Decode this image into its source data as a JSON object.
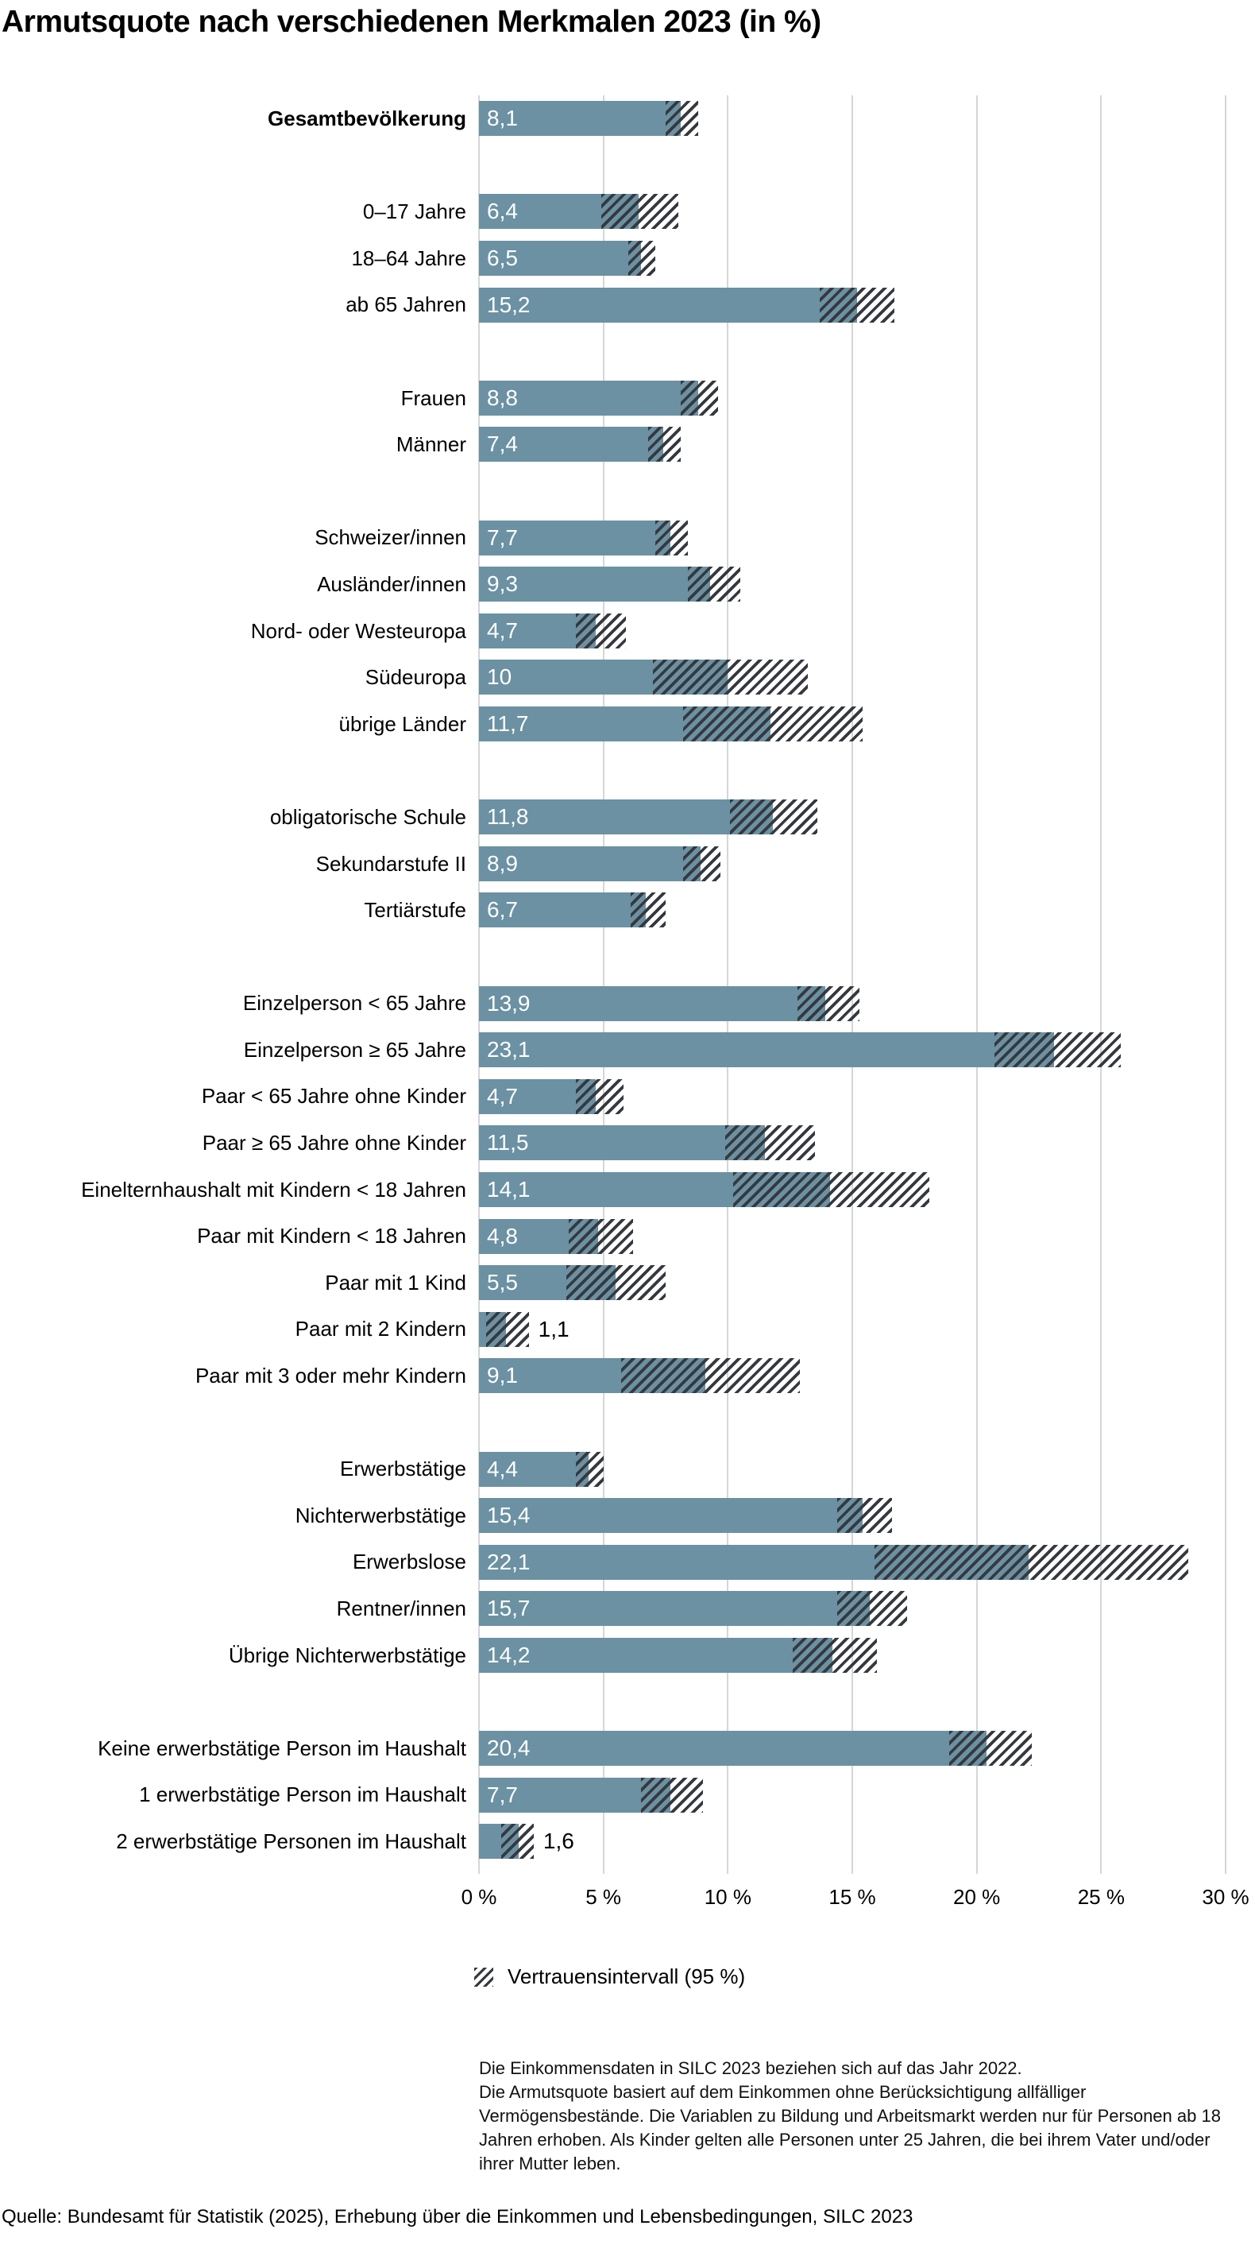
{
  "title": "Armutsquote nach verschiedenen Merkmalen 2023 (in %)",
  "legend": {
    "swatch": "hatch-pattern",
    "label": "Vertrauensintervall (95 %)"
  },
  "notes": {
    "line1": "Die Einkommensdaten in SILC 2023 beziehen sich auf das Jahr 2022.",
    "line2": "Die Armutsquote basiert auf dem Einkommen ohne Berücksichtigung allfälliger Vermögensbestände. Die Variablen zu Bildung und Arbeitsmarkt werden nur für Personen ab 18 Jahren erhoben. Als Kinder gelten alle Personen unter 25 Jahren, die bei ihrem Vater und/oder ihrer Mutter leben."
  },
  "source": "Quelle: Bundesamt für Statistik (2025), Erhebung über die Einkommen und Lebensbedingungen, SILC 2023",
  "colors": {
    "bar": "#6b91a3",
    "hatch": "#35393e",
    "gridline": "#d6d6d6",
    "value_label_inside": "#ffffff",
    "value_label_outside": "#000000"
  },
  "chart_data": {
    "type": "bar",
    "orientation": "horizontal",
    "unit": "%",
    "xlim": [
      0,
      30
    ],
    "x_ticks": [
      "0 %",
      "5 %",
      "10 %",
      "15 %",
      "20 %",
      "25 %",
      "30 %"
    ],
    "x_tick_values": [
      0,
      5,
      10,
      15,
      20,
      25,
      30
    ],
    "grid": true,
    "ci_legend": "Vertrauensintervall (95 %)",
    "groups": [
      {
        "rows": [
          {
            "label": "Gesamtbevölkerung",
            "bold": true,
            "value": 8.1,
            "display": "8,1",
            "ci": [
              7.5,
              8.8
            ]
          }
        ]
      },
      {
        "rows": [
          {
            "label": "0–17 Jahre",
            "value": 6.4,
            "display": "6,4",
            "ci": [
              4.9,
              8.0
            ]
          },
          {
            "label": "18–64 Jahre",
            "value": 6.5,
            "display": "6,5",
            "ci": [
              6.0,
              7.1
            ]
          },
          {
            "label": "ab 65 Jahren",
            "value": 15.2,
            "display": "15,2",
            "ci": [
              13.7,
              16.7
            ]
          }
        ]
      },
      {
        "rows": [
          {
            "label": "Frauen",
            "value": 8.8,
            "display": "8,8",
            "ci": [
              8.1,
              9.6
            ]
          },
          {
            "label": "Männer",
            "value": 7.4,
            "display": "7,4",
            "ci": [
              6.8,
              8.1
            ]
          }
        ]
      },
      {
        "rows": [
          {
            "label": "Schweizer/innen",
            "value": 7.7,
            "display": "7,7",
            "ci": [
              7.1,
              8.4
            ]
          },
          {
            "label": "Ausländer/innen",
            "value": 9.3,
            "display": "9,3",
            "ci": [
              8.4,
              10.5
            ]
          },
          {
            "label": "Nord- oder Westeuropa",
            "value": 4.7,
            "display": "4,7",
            "ci": [
              3.9,
              5.9
            ]
          },
          {
            "label": "Südeuropa",
            "value": 10,
            "display": "10",
            "ci": [
              7.0,
              13.2
            ]
          },
          {
            "label": "übrige Länder",
            "value": 11.7,
            "display": "11,7",
            "ci": [
              8.2,
              15.4
            ]
          }
        ]
      },
      {
        "rows": [
          {
            "label": "obligatorische Schule",
            "value": 11.8,
            "display": "11,8",
            "ci": [
              10.1,
              13.6
            ]
          },
          {
            "label": "Sekundarstufe II",
            "value": 8.9,
            "display": "8,9",
            "ci": [
              8.2,
              9.7
            ]
          },
          {
            "label": "Tertiärstufe",
            "value": 6.7,
            "display": "6,7",
            "ci": [
              6.1,
              7.5
            ]
          }
        ]
      },
      {
        "rows": [
          {
            "label": "Einzelperson < 65 Jahre",
            "value": 13.9,
            "display": "13,9",
            "ci": [
              12.8,
              15.3
            ]
          },
          {
            "label": "Einzelperson ≥ 65 Jahre",
            "value": 23.1,
            "display": "23,1",
            "ci": [
              20.7,
              25.8
            ]
          },
          {
            "label": "Paar < 65 Jahre ohne Kinder",
            "value": 4.7,
            "display": "4,7",
            "ci": [
              3.9,
              5.8
            ]
          },
          {
            "label": "Paar ≥ 65 Jahre ohne Kinder",
            "value": 11.5,
            "display": "11,5",
            "ci": [
              9.9,
              13.5
            ]
          },
          {
            "label": "Einelternhaushalt mit Kindern < 18 Jahren",
            "value": 14.1,
            "display": "14,1",
            "ci": [
              10.2,
              18.1
            ]
          },
          {
            "label": "Paar mit Kindern < 18 Jahren",
            "value": 4.8,
            "display": "4,8",
            "ci": [
              3.6,
              6.2
            ]
          },
          {
            "label": "Paar mit 1 Kind",
            "value": 5.5,
            "display": "5,5",
            "ci": [
              3.5,
              7.5
            ]
          },
          {
            "label": "Paar mit 2 Kindern",
            "value": 1.1,
            "display": "1,1",
            "ci": [
              0.3,
              2.0
            ],
            "outside": true
          },
          {
            "label": "Paar mit 3 oder mehr Kindern",
            "value": 9.1,
            "display": "9,1",
            "ci": [
              5.7,
              12.9
            ]
          }
        ]
      },
      {
        "rows": [
          {
            "label": "Erwerbstätige",
            "value": 4.4,
            "display": "4,4",
            "ci": [
              3.9,
              5.0
            ]
          },
          {
            "label": "Nichterwerbstätige",
            "value": 15.4,
            "display": "15,4",
            "ci": [
              14.4,
              16.6
            ]
          },
          {
            "label": "Erwerbslose",
            "value": 22.1,
            "display": "22,1",
            "ci": [
              15.9,
              28.5
            ]
          },
          {
            "label": "Rentner/innen",
            "value": 15.7,
            "display": "15,7",
            "ci": [
              14.4,
              17.2
            ]
          },
          {
            "label": "Übrige Nichterwerbstätige",
            "value": 14.2,
            "display": "14,2",
            "ci": [
              12.6,
              16.0
            ]
          }
        ]
      },
      {
        "rows": [
          {
            "label": "Keine erwerbstätige Person im Haushalt",
            "value": 20.4,
            "display": "20,4",
            "ci": [
              18.9,
              22.2
            ]
          },
          {
            "label": "1 erwerbstätige Person im Haushalt",
            "value": 7.7,
            "display": "7,7",
            "ci": [
              6.5,
              9.0
            ]
          },
          {
            "label": "2 erwerbstätige Personen im Haushalt",
            "value": 1.6,
            "display": "1,6",
            "ci": [
              0.9,
              2.2
            ],
            "outside": true
          }
        ]
      }
    ]
  }
}
